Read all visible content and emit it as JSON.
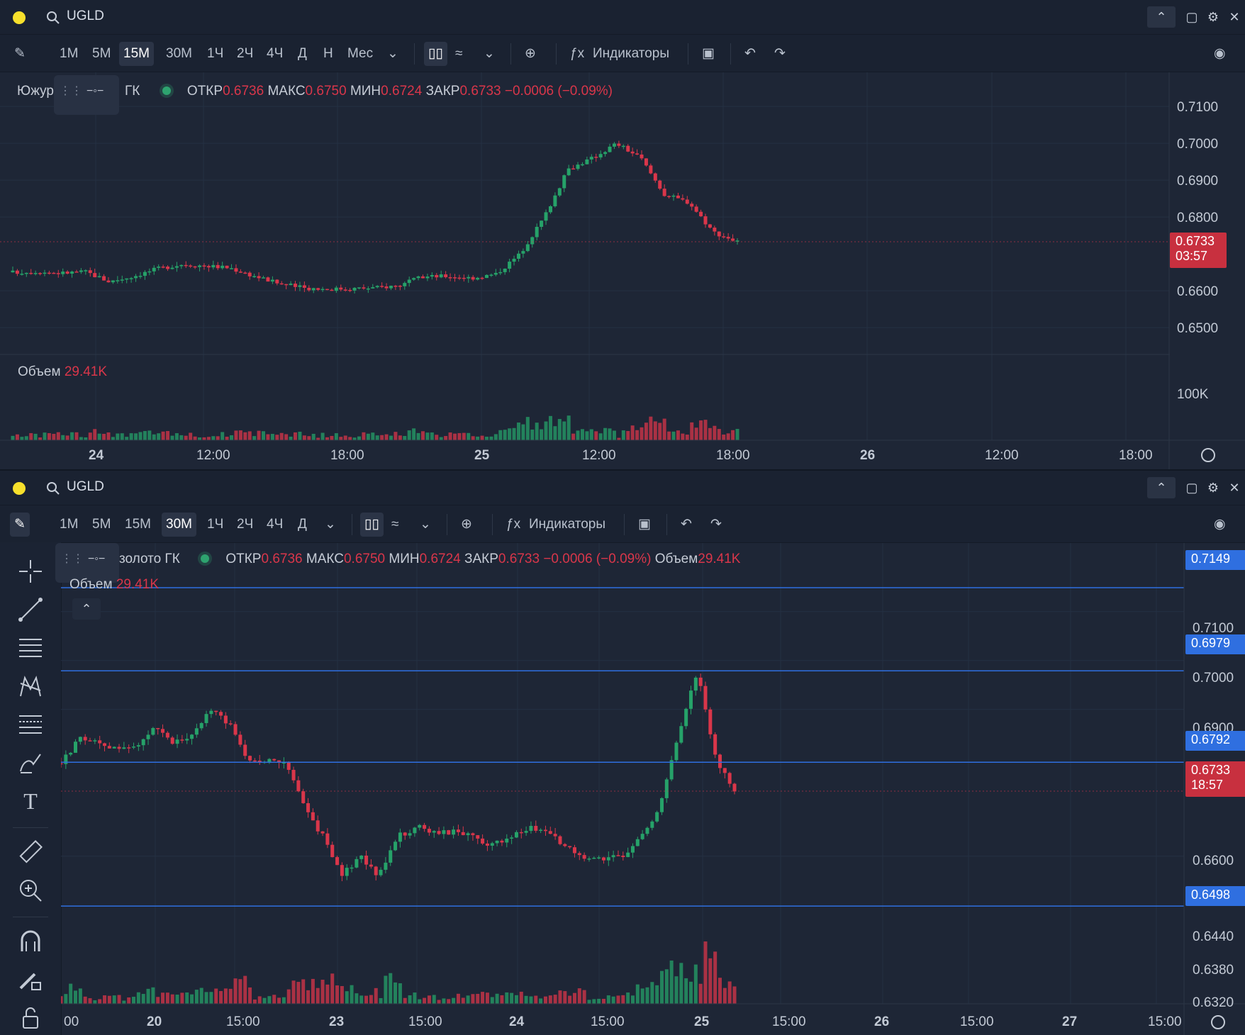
{
  "panes": [
    {
      "ticker": "UGLD",
      "timeframes": [
        "1М",
        "5М",
        "15М",
        "30М",
        "1Ч",
        "2Ч",
        "4Ч",
        "Д",
        "Н",
        "Мес"
      ],
      "active_timeframe": "15М",
      "indicators_label": "Индикаторы",
      "legend": {
        "name": "Южур",
        "name_tail": "ГК",
        "open_label": "ОТКР",
        "open": "0.6736",
        "high_label": "МАКС",
        "high": "0.6750",
        "low_label": "МИН",
        "low": "0.6724",
        "close_label": "ЗАКР",
        "close": "0.6733",
        "change": "−0.0006 (−0.09%)"
      },
      "volume_label": "Объем",
      "volume_value": "29.41K",
      "price_ticks": [
        "0.7100",
        "0.7000",
        "0.6900",
        "0.6800",
        "0.6600",
        "0.6500"
      ],
      "volume_tick": "100K",
      "last_price": "0.6733",
      "countdown": "03:57",
      "time_ticks": [
        "24",
        "12:00",
        "18:00",
        "25",
        "12:00",
        "18:00",
        "26",
        "12:00",
        "18:00"
      ]
    },
    {
      "ticker": "UGLD",
      "timeframes": [
        "1М",
        "5М",
        "15М",
        "30М",
        "1Ч",
        "2Ч",
        "4Ч",
        "Д"
      ],
      "active_timeframe": "30М",
      "indicators_label": "Индикаторы",
      "legend": {
        "name": "золото ГК",
        "open_label": "ОТКР",
        "open": "0.6736",
        "high_label": "МАКС",
        "high": "0.6750",
        "low_label": "МИН",
        "low": "0.6724",
        "close_label": "ЗАКР",
        "close": "0.6733",
        "change": "−0.0006 (−0.09%)",
        "volume_label": "Объем",
        "volume": "29.41K"
      },
      "volume_label": "Объем",
      "volume_value": "29.41K",
      "price_ticks": [
        "0.7100",
        "0.7000",
        "0.6900",
        "0.6600",
        "0.6440",
        "0.6380",
        "0.6320"
      ],
      "level_lines": [
        "0.7149",
        "0.6979",
        "0.6792",
        "0.6498"
      ],
      "last_price": "0.6733",
      "countdown": "18:57",
      "time_ticks": [
        "00",
        "20",
        "15:00",
        "23",
        "15:00",
        "24",
        "15:00",
        "25",
        "15:00",
        "26",
        "15:00",
        "27",
        "15:00"
      ]
    }
  ],
  "colors": {
    "up": "#26a269",
    "down": "#d9364a",
    "level": "#2f6fe0",
    "bg": "#1e2636"
  }
}
